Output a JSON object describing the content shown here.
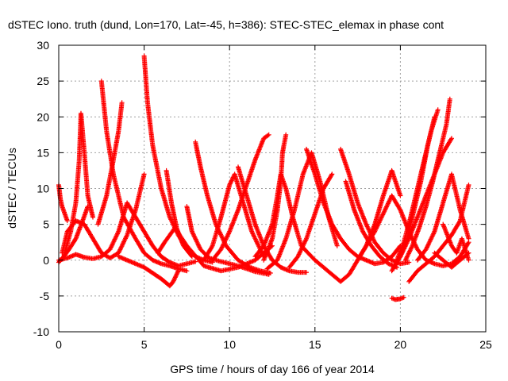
{
  "chart_data": {
    "type": "scatter",
    "title": "dSTEC Iono. truth (dund, Lon=170, Lat=-45, h=386): STEC-STEC_elemax in phase cont",
    "xlabel": "GPS time / hours of day 166 of year 2014",
    "ylabel": "dSTEC  / TECUs",
    "xlim": [
      0,
      25
    ],
    "ylim": [
      -10,
      30
    ],
    "xticks": [
      0,
      5,
      10,
      15,
      20,
      25
    ],
    "yticks": [
      -10,
      -5,
      0,
      5,
      10,
      15,
      20,
      25,
      30
    ],
    "xtick_labels": [
      "0",
      "5",
      "10",
      "15",
      "20",
      "25"
    ],
    "ytick_labels": [
      "-10",
      "-5",
      "0",
      "5",
      "10",
      "15",
      "20",
      "25",
      "30"
    ],
    "grid": true,
    "marker": "+",
    "color": "#ff0000",
    "series": [
      {
        "x": [
          0.0,
          0.1,
          0.2,
          0.35,
          0.5
        ],
        "y": [
          10.5,
          8.5,
          7.5,
          6.5,
          5.5
        ]
      },
      {
        "x": [
          0.0,
          0.3,
          0.7,
          1.0,
          1.2,
          1.3,
          1.5,
          1.7,
          2.0
        ],
        "y": [
          -0.3,
          0.5,
          4.0,
          8.0,
          14.0,
          20.5,
          15.0,
          9.0,
          6.0
        ]
      },
      {
        "x": [
          0.2,
          0.5,
          1.0,
          1.5,
          2.0,
          2.5,
          3.0,
          3.5,
          4.0,
          4.5,
          5.0
        ],
        "y": [
          1.0,
          4.0,
          5.5,
          5.0,
          3.0,
          1.0,
          0.3,
          1.0,
          3.5,
          7.0,
          12.0
        ]
      },
      {
        "x": [
          0.0,
          0.5,
          1.0,
          1.5,
          2.0,
          2.5,
          3.0,
          3.5,
          4.0,
          4.5,
          5.0,
          5.5,
          6.0,
          6.5,
          7.0,
          7.5,
          8.0
        ],
        "y": [
          0.0,
          0.3,
          0.8,
          0.4,
          0.2,
          0.5,
          1.5,
          4.0,
          8.0,
          6.0,
          4.0,
          2.0,
          0.5,
          -0.3,
          -0.8,
          -0.5,
          -0.2
        ]
      },
      {
        "x": [
          0.2,
          0.6,
          1.0,
          1.4,
          1.7
        ],
        "y": [
          0.2,
          1.5,
          3.0,
          5.5,
          7.5
        ]
      },
      {
        "x": [
          2.5,
          2.8,
          3.2,
          3.8,
          4.5,
          5.0,
          5.5,
          6.0,
          6.5,
          7.0,
          7.5
        ],
        "y": [
          25.0,
          18.0,
          12.0,
          6.0,
          3.0,
          1.0,
          0.0,
          -0.5,
          -0.8,
          -1.2,
          -1.5
        ]
      },
      {
        "x": [
          2.3,
          2.8,
          3.2,
          3.5,
          3.7
        ],
        "y": [
          5.0,
          9.0,
          14.0,
          18.0,
          22.0
        ]
      },
      {
        "x": [
          3.5,
          4.0,
          4.5,
          5.0,
          5.5,
          6.0,
          6.3,
          6.5,
          6.7,
          7.0
        ],
        "y": [
          0.5,
          0.0,
          -0.5,
          -1.0,
          -1.8,
          -2.6,
          -3.2,
          -3.6,
          -3.0,
          -1.5
        ]
      },
      {
        "x": [
          5.0,
          5.2,
          5.5,
          6.0,
          6.5,
          7.0,
          7.5,
          8.0,
          8.5,
          9.0
        ],
        "y": [
          28.5,
          22.0,
          16.0,
          10.0,
          6.0,
          3.5,
          1.5,
          0.5,
          0.0,
          -0.3
        ]
      },
      {
        "x": [
          6.3,
          6.6,
          6.9,
          7.3,
          7.8
        ],
        "y": [
          12.5,
          8.0,
          4.5,
          2.0,
          0.5
        ]
      },
      {
        "x": [
          5.8,
          6.2,
          6.8,
          7.5,
          8.5,
          9.5,
          10.5,
          11.5,
          12.5
        ],
        "y": [
          1.0,
          2.5,
          4.5,
          2.0,
          -0.8,
          -1.5,
          -1.0,
          0.0,
          2.0
        ]
      },
      {
        "x": [
          7.5,
          7.8,
          8.3,
          8.8,
          9.5,
          10.5,
          11.5,
          12.3
        ],
        "y": [
          7.5,
          4.0,
          1.5,
          0.3,
          -0.2,
          -0.8,
          -1.6,
          -2.0
        ]
      },
      {
        "x": [
          8.0,
          8.3,
          8.7,
          9.2,
          9.8,
          10.5,
          11.2,
          11.8,
          12.4
        ],
        "y": [
          16.5,
          13.0,
          9.0,
          5.0,
          2.0,
          0.0,
          -1.0,
          -1.5,
          -1.8
        ]
      },
      {
        "x": [
          9.0,
          9.5,
          10.0,
          10.5,
          11.0,
          11.5,
          12.0,
          12.3
        ],
        "y": [
          0.0,
          1.5,
          4.0,
          7.0,
          10.5,
          14.0,
          17.0,
          17.5
        ]
      },
      {
        "x": [
          8.5,
          9.0,
          9.5,
          10.0,
          10.3,
          10.8,
          11.3,
          12.0
        ],
        "y": [
          0.0,
          2.0,
          6.0,
          10.5,
          12.0,
          8.0,
          4.0,
          0.5
        ]
      },
      {
        "x": [
          10.5,
          11.0,
          11.5,
          12.0,
          12.5,
          13.0,
          13.5,
          14.0,
          14.5
        ],
        "y": [
          13.0,
          9.0,
          5.0,
          2.0,
          0.0,
          -1.0,
          -1.5,
          -1.7,
          -1.7
        ]
      },
      {
        "x": [
          11.5,
          12.0,
          12.5,
          12.8,
          13.0,
          13.3,
          13.7,
          14.2,
          15.0
        ],
        "y": [
          0.5,
          2.0,
          5.0,
          9.0,
          12.0,
          10.0,
          6.0,
          2.0,
          0.0
        ]
      },
      {
        "x": [
          12.2,
          12.8,
          13.3,
          13.8,
          14.3,
          14.8,
          15.3,
          15.8,
          16.3
        ],
        "y": [
          -1.2,
          0.0,
          3.0,
          7.0,
          12.0,
          15.0,
          11.0,
          6.0,
          2.0
        ]
      },
      {
        "x": [
          12.0,
          12.5,
          12.8,
          13.0,
          13.1,
          13.3
        ],
        "y": [
          0.0,
          3.0,
          7.0,
          11.0,
          15.0,
          17.5
        ]
      },
      {
        "x": [
          14.5,
          15.0,
          15.5,
          16.0,
          16.5,
          17.0,
          17.5,
          18.0,
          18.5,
          19.0,
          19.5,
          20.0
        ],
        "y": [
          15.5,
          12.0,
          8.0,
          5.0,
          3.0,
          1.5,
          0.5,
          0.0,
          -0.5,
          -0.3,
          0.5,
          2.0
        ]
      },
      {
        "x": [
          13.5,
          14.0,
          14.5,
          15.0,
          15.5,
          16.0
        ],
        "y": [
          -1.0,
          0.5,
          3.0,
          6.5,
          10.0,
          12.0
        ]
      },
      {
        "x": [
          15.0,
          15.5,
          16.0,
          16.5,
          17.0,
          17.5,
          18.0,
          18.5
        ],
        "y": [
          0.0,
          -1.0,
          -2.0,
          -3.0,
          -2.0,
          0.0,
          2.0,
          4.0
        ]
      },
      {
        "x": [
          16.5,
          17.0,
          17.5,
          18.0,
          18.5,
          19.0,
          19.5,
          20.0,
          20.5
        ],
        "y": [
          15.5,
          12.0,
          8.0,
          5.0,
          2.5,
          1.0,
          0.0,
          -0.5,
          -0.3
        ]
      },
      {
        "x": [
          16.8,
          17.3,
          17.8,
          18.3,
          18.8,
          19.3,
          19.8
        ],
        "y": [
          11.0,
          7.0,
          4.0,
          2.0,
          0.5,
          -0.5,
          -1.0
        ]
      },
      {
        "x": [
          17.5,
          18.0,
          18.5,
          19.0,
          19.5,
          20.0
        ],
        "y": [
          0.0,
          2.0,
          5.0,
          9.0,
          12.5,
          9.0
        ]
      },
      {
        "x": [
          18.5,
          19.0,
          19.5,
          20.0,
          20.5,
          21.0,
          21.5,
          22.0,
          22.5,
          23.0,
          23.5,
          24.0
        ],
        "y": [
          4.0,
          6.5,
          9.0,
          7.0,
          4.0,
          1.5,
          0.0,
          -0.5,
          -0.8,
          -0.5,
          0.5,
          2.5
        ]
      },
      {
        "x": [
          19.5,
          19.7,
          20.0,
          20.2
        ],
        "y": [
          -5.3,
          -5.5,
          -5.4,
          -5.2
        ]
      },
      {
        "x": [
          19.5,
          20.0,
          20.5,
          21.0,
          21.5,
          22.0,
          22.5,
          23.0
        ],
        "y": [
          -1.5,
          0.5,
          3.0,
          6.0,
          9.0,
          12.0,
          15.0,
          17.0
        ]
      },
      {
        "x": [
          19.8,
          20.2,
          20.6,
          21.0,
          21.4,
          21.8,
          22.2
        ],
        "y": [
          0.0,
          2.5,
          6.0,
          10.0,
          14.0,
          18.0,
          21.0
        ]
      },
      {
        "x": [
          20.0,
          20.4,
          20.8,
          21.2,
          21.6,
          22.0
        ],
        "y": [
          0.5,
          3.0,
          7.0,
          11.0,
          16.0,
          20.0
        ]
      },
      {
        "x": [
          20.3,
          20.7,
          21.1,
          21.5,
          21.9,
          22.3,
          22.7,
          22.9
        ],
        "y": [
          0.0,
          2.0,
          4.5,
          7.5,
          11.0,
          15.0,
          19.0,
          22.5
        ]
      },
      {
        "x": [
          20.5,
          21.0,
          21.5,
          22.0,
          22.5,
          23.0,
          23.5,
          24.0
        ],
        "y": [
          -3.0,
          -1.5,
          -0.5,
          0.5,
          2.0,
          3.5,
          5.5,
          10.5
        ]
      },
      {
        "x": [
          21.0,
          21.5,
          22.0,
          22.5,
          23.0,
          23.5,
          24.0
        ],
        "y": [
          0.0,
          1.5,
          4.0,
          8.0,
          12.0,
          7.0,
          3.0
        ]
      },
      {
        "x": [
          22.5,
          23.0,
          23.3,
          23.6,
          24.0
        ],
        "y": [
          5.0,
          2.0,
          1.0,
          3.0,
          0.0
        ]
      },
      {
        "x": [
          22.0,
          22.5,
          23.0,
          23.5,
          24.0
        ],
        "y": [
          1.0,
          0.0,
          -1.0,
          0.0,
          1.0
        ]
      }
    ]
  }
}
